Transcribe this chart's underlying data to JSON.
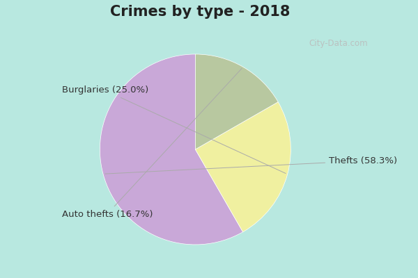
{
  "title": "Crimes by type - 2018",
  "slices": [
    {
      "label": "Thefts (58.3%)",
      "value": 58.3,
      "color": "#C9A8D8"
    },
    {
      "label": "Burglaries (25.0%)",
      "value": 25.0,
      "color": "#F0F0A0"
    },
    {
      "label": "Auto thefts (16.7%)",
      "value": 16.7,
      "color": "#B8C8A0"
    }
  ],
  "background_color": "#B8E8E0",
  "title_fontsize": 15,
  "label_fontsize": 9.5,
  "watermark": "City-Data.com",
  "startangle": 90
}
